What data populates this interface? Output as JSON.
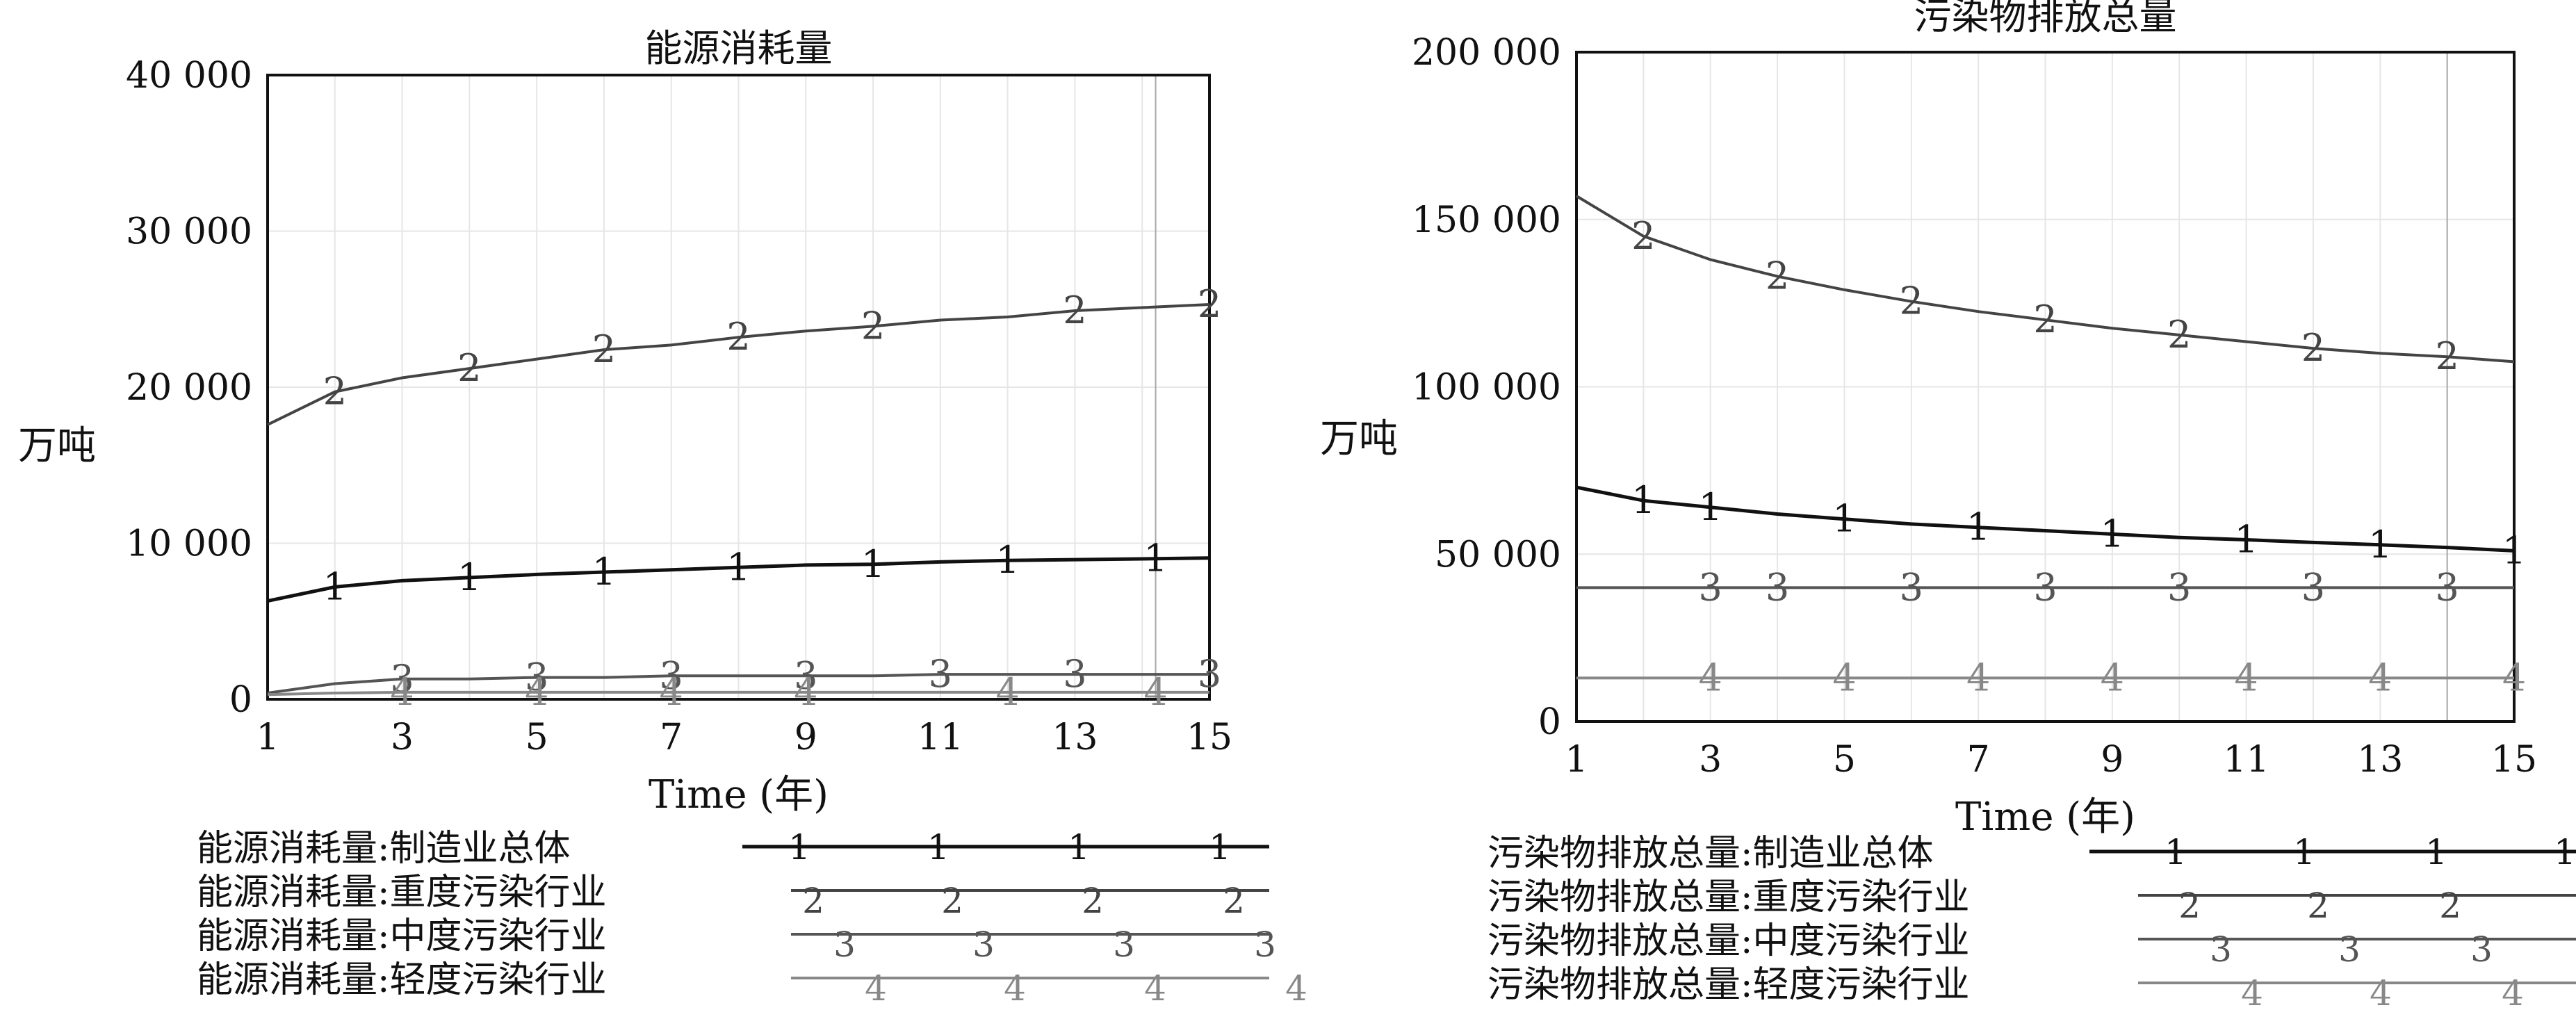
{
  "chart_data": [
    {
      "type": "line",
      "title": "能源消耗量",
      "ylabel": "万吨",
      "xlabel": "Time (年)",
      "xlim": [
        1,
        15
      ],
      "ylim": [
        0,
        40000
      ],
      "x_ticks": [
        1,
        3,
        5,
        7,
        9,
        11,
        13,
        15
      ],
      "x_tick_labels": [
        "1",
        "3",
        "5",
        "7",
        "9",
        "11",
        "13",
        "15"
      ],
      "y_ticks": [
        0,
        10000,
        20000,
        30000,
        40000
      ],
      "y_tick_labels": [
        "0",
        "10 000",
        "20 000",
        "30 000",
        "40 000"
      ],
      "grid": true,
      "x": [
        1,
        2,
        3,
        4,
        5,
        6,
        7,
        8,
        9,
        10,
        11,
        12,
        13,
        14,
        15
      ],
      "series": [
        {
          "name": "能源消耗量:制造业总体",
          "marker": "1",
          "color": "#111111",
          "values": [
            6300,
            7200,
            7600,
            7800,
            8000,
            8150,
            8300,
            8450,
            8600,
            8650,
            8800,
            8900,
            8950,
            9000,
            9050
          ],
          "marker_x": [
            2,
            4,
            6,
            8,
            10,
            12,
            14.2
          ]
        },
        {
          "name": "能源消耗量:重度污染行业",
          "marker": "2",
          "color": "#444444",
          "values": [
            17600,
            19700,
            20600,
            21200,
            21800,
            22400,
            22700,
            23200,
            23600,
            23900,
            24300,
            24500,
            24900,
            25100,
            25300
          ],
          "marker_x": [
            2,
            4,
            6,
            8,
            10,
            13,
            15
          ]
        },
        {
          "name": "能源消耗量:中度污染行业",
          "marker": "3",
          "color": "#555555",
          "values": [
            400,
            1000,
            1300,
            1300,
            1400,
            1400,
            1500,
            1500,
            1500,
            1500,
            1600,
            1600,
            1600,
            1600,
            1600
          ],
          "marker_x": [
            3,
            5,
            7,
            9,
            11,
            13,
            15
          ]
        },
        {
          "name": "能源消耗量:轻度污染行业",
          "marker": "4",
          "color": "#888888",
          "values": [
            300,
            400,
            450,
            450,
            450,
            450,
            450,
            450,
            450,
            450,
            450,
            450,
            450,
            450,
            450
          ],
          "marker_x": [
            3,
            5,
            7,
            9,
            12,
            14.2
          ]
        }
      ],
      "legend_position": "bottom"
    },
    {
      "type": "line",
      "title": "污染物排放总量",
      "ylabel": "万吨",
      "xlabel": "Time (年)",
      "xlim": [
        1,
        15
      ],
      "ylim": [
        0,
        200000
      ],
      "x_ticks": [
        1,
        3,
        5,
        7,
        9,
        11,
        13,
        15
      ],
      "x_tick_labels": [
        "1",
        "3",
        "5",
        "7",
        "9",
        "11",
        "13",
        "15"
      ],
      "y_ticks": [
        0,
        50000,
        100000,
        150000,
        200000
      ],
      "y_tick_labels": [
        "0",
        "50 000",
        "100 000",
        "150 000",
        "200 000"
      ],
      "grid": true,
      "x": [
        1,
        2,
        3,
        4,
        5,
        6,
        7,
        8,
        9,
        10,
        11,
        12,
        13,
        14,
        15
      ],
      "series": [
        {
          "name": "污染物排放总量:制造业总体",
          "marker": "1",
          "color": "#111111",
          "values": [
            70000,
            66000,
            64000,
            62000,
            60500,
            59000,
            58000,
            57000,
            56000,
            55000,
            54300,
            53500,
            52800,
            52000,
            51000
          ],
          "marker_x": [
            2,
            3,
            5,
            7,
            9,
            11,
            13,
            15
          ]
        },
        {
          "name": "污染物排放总量:重度污染行业",
          "marker": "2",
          "color": "#444444",
          "values": [
            157000,
            145000,
            138000,
            133000,
            129000,
            125500,
            122500,
            120000,
            117500,
            115500,
            113500,
            111500,
            110000,
            109000,
            107500
          ],
          "marker_x": [
            2,
            4,
            6,
            8,
            10,
            12,
            14
          ]
        },
        {
          "name": "污染物排放总量:中度污染行业",
          "marker": "3",
          "color": "#555555",
          "values": [
            40000,
            40000,
            40000,
            40000,
            40000,
            40000,
            40000,
            40000,
            40000,
            40000,
            40000,
            40000,
            40000,
            40000,
            40000
          ],
          "marker_x": [
            3,
            4,
            6,
            8,
            10,
            12,
            14
          ]
        },
        {
          "name": "污染物排放总量:轻度污染行业",
          "marker": "4",
          "color": "#888888",
          "values": [
            13000,
            13000,
            13000,
            13000,
            13000,
            13000,
            13000,
            13000,
            13000,
            13000,
            13000,
            13000,
            13000,
            13000,
            13000
          ],
          "marker_x": [
            3,
            5,
            7,
            9,
            11,
            13,
            15
          ]
        }
      ],
      "legend_position": "bottom"
    }
  ]
}
